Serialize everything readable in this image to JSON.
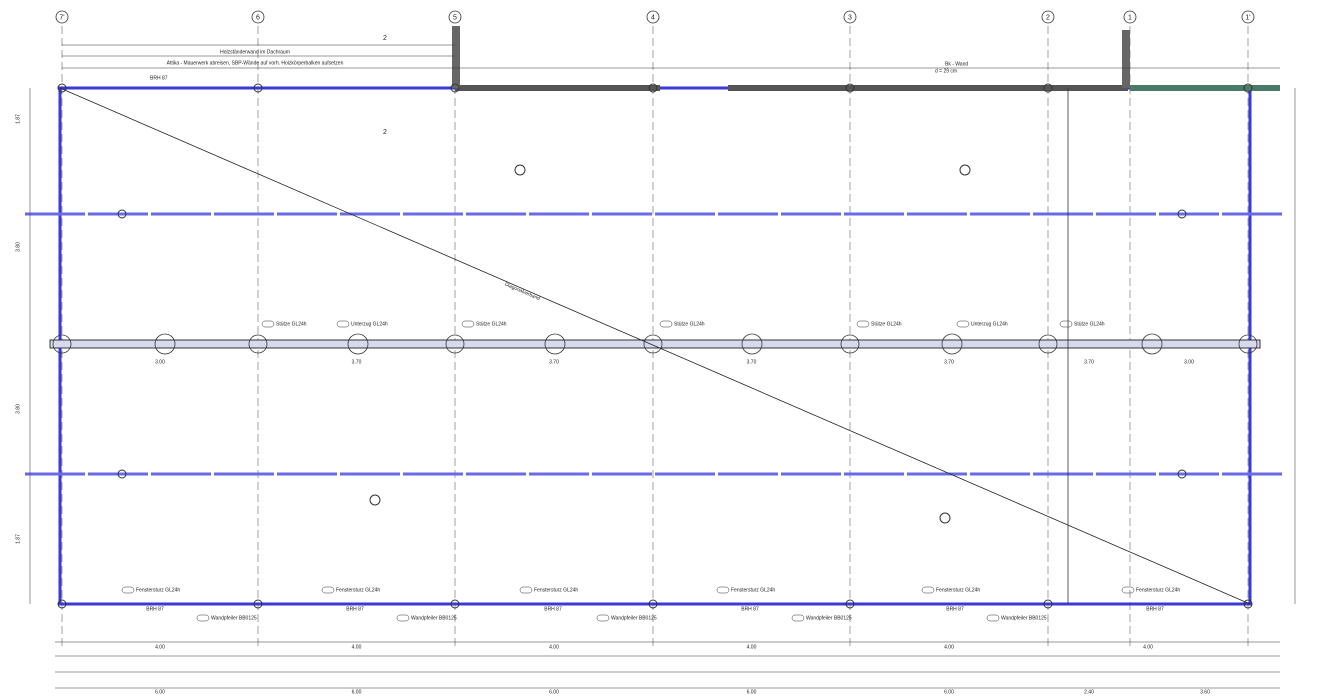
{
  "grid_axes": [
    "7'",
    "6",
    "5",
    "4",
    "3",
    "2",
    "1",
    "1'"
  ],
  "notes": {
    "top_wall": "Holzständerwand im Dachraum",
    "attika": "Attika - Mauerwerk abreisen, SBP-Wände auf vorh. Holzkörperbalken aufsetzen",
    "bk_wall": "Bk - Wand",
    "bk_size": "d = 29 cm",
    "section_top": "2",
    "section_mid": "2",
    "brh_top": "BRH 87",
    "diagonal": "Diagonalverband"
  },
  "beam_labels": [
    "Stütze GL24h",
    "Unterzug GL24h",
    "Stütze GL24h",
    "Stütze GL24h",
    "Stütze GL24h",
    "Unterzug GL24h",
    "Stütze GL24h"
  ],
  "span_dims": [
    "3.00",
    "3.70",
    "3.70",
    "3.70",
    "3.70",
    "3.70",
    "3.00"
  ],
  "lintels": [
    "Fenstersturz GL24h",
    "Fenstersturz GL24h",
    "Fenstersturz GL24h",
    "Fenstersturz GL24h",
    "Fenstersturz GL24h",
    "Fenstersturz GL24h"
  ],
  "sill_labels": [
    "BRH 87",
    "BRH 87",
    "BRH 87",
    "BRH 87",
    "BRH 87",
    "BRH 87"
  ],
  "pier_labels": [
    "Wandpfeiler BB0125",
    "Wandpfeiler BB0125",
    "Wandpfeiler BB0125",
    "Wandpfeiler BB0125",
    "Wandpfeiler BB0125"
  ],
  "bottom_dims": [
    "4.00",
    "4.00",
    "4.00",
    "4.00",
    "4.00",
    "4.00"
  ],
  "total_dims": [
    "6.00",
    "6.00",
    "6.00",
    "6.00",
    "6.00",
    "2.40",
    "3.60"
  ],
  "side_dims": [
    "1.87",
    "3.80",
    "3.80",
    "1.87"
  ]
}
